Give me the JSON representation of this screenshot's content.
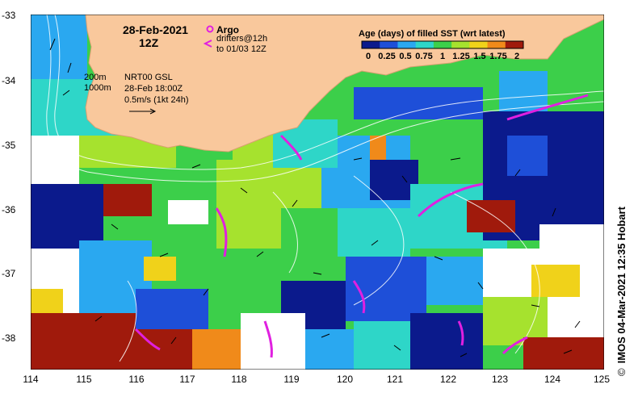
{
  "map": {
    "date_label": "28-Feb-2021",
    "time_label": "12Z",
    "argo_label": "Argo",
    "drifters_line1": "drifters@12h",
    "drifters_line2": "to 01/03 12Z",
    "contour_200": "200m",
    "contour_1000": "1000m",
    "gsl_label": "NRT00 GSL",
    "gsl_time": "28-Feb 18:00Z",
    "vector_scale": "0.5m/s (1kt 24h)",
    "colorbar_title": "Age (days) of filled SST (wrt latest)",
    "colorbar_ticks": [
      "0",
      "0.25",
      "0.5",
      "0.75",
      "1",
      "1.25",
      "1.5",
      "1.75",
      "2"
    ],
    "colorbar_colors": [
      "#0b1a8c",
      "#1e4fd8",
      "#2aa8f0",
      "#2ed6c8",
      "#3ccf4a",
      "#a6e22e",
      "#f0d21a",
      "#f08a1a",
      "#a01a0c"
    ],
    "land_color": "#f9c89c",
    "argo_color": "#e020e0",
    "credit": "IMOS 04-Mar-2021 12:35 Hobart",
    "copyright": "©"
  },
  "axes": {
    "lat_ticks": [
      "-33",
      "-34",
      "-35",
      "-36",
      "-37",
      "-38"
    ],
    "lon_ticks": [
      "114",
      "115",
      "116",
      "117",
      "118",
      "119",
      "120",
      "121",
      "122",
      "123",
      "124",
      "125"
    ]
  }
}
